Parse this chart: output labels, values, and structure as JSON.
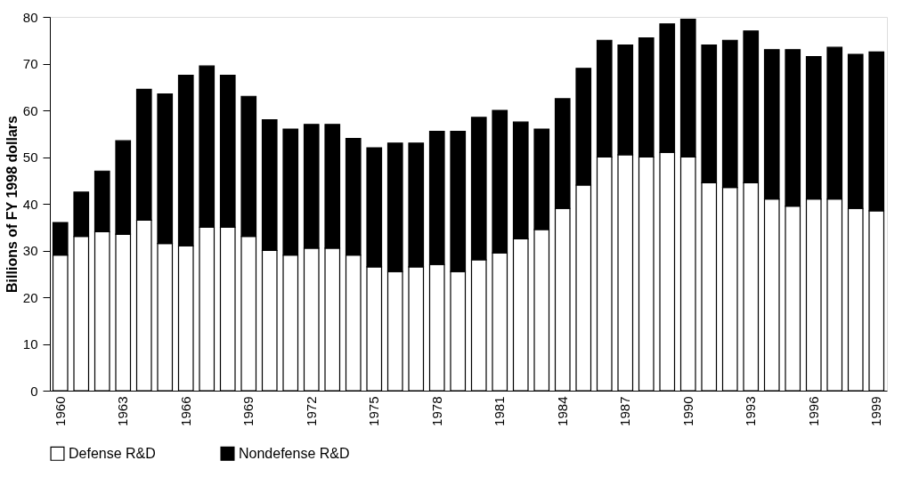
{
  "chart_data": {
    "type": "bar",
    "stacked": true,
    "ylabel": "Billions of FY 1998 dollars",
    "categories": [
      "1960",
      null,
      null,
      "1963",
      null,
      null,
      "1966",
      null,
      null,
      "1969",
      null,
      null,
      "1972",
      null,
      null,
      "1975",
      null,
      null,
      "1978",
      null,
      null,
      "1981",
      null,
      null,
      "1984",
      null,
      null,
      "1987",
      null,
      null,
      "1990",
      null,
      null,
      "1993",
      null,
      null,
      "1996",
      null,
      null,
      "1999"
    ],
    "series": [
      {
        "name": "Defense R&D",
        "color": "#ffffff",
        "values": [
          29,
          33,
          34,
          33.5,
          36.5,
          31.5,
          31,
          35,
          35,
          33,
          30,
          29,
          30.5,
          30.5,
          29,
          26.5,
          25.5,
          26.5,
          27,
          25.5,
          28,
          29.5,
          32.5,
          34.5,
          39,
          44,
          50,
          50.5,
          50,
          51,
          50,
          44.5,
          43.5,
          44.5,
          41,
          39.5,
          41,
          41,
          39,
          38.5
        ]
      },
      {
        "name": "Nondefense R&D",
        "color": "#000000",
        "values": [
          7,
          9.5,
          13,
          20,
          28,
          32,
          36.5,
          34.5,
          32.5,
          30,
          28,
          27,
          26.5,
          26.5,
          25,
          25.5,
          27.5,
          26.5,
          28.5,
          30,
          30.5,
          30.5,
          25,
          21.5,
          23.5,
          25,
          25,
          23.5,
          25.5,
          27.5,
          29.5,
          29.5,
          31.5,
          32.5,
          32,
          33.5,
          30.5,
          32.5,
          33,
          34
        ]
      }
    ],
    "ylim": [
      0,
      80
    ],
    "yticks": [
      0,
      10,
      20,
      30,
      40,
      50,
      60,
      70,
      80
    ],
    "grid": false,
    "legend": "bottom left"
  }
}
